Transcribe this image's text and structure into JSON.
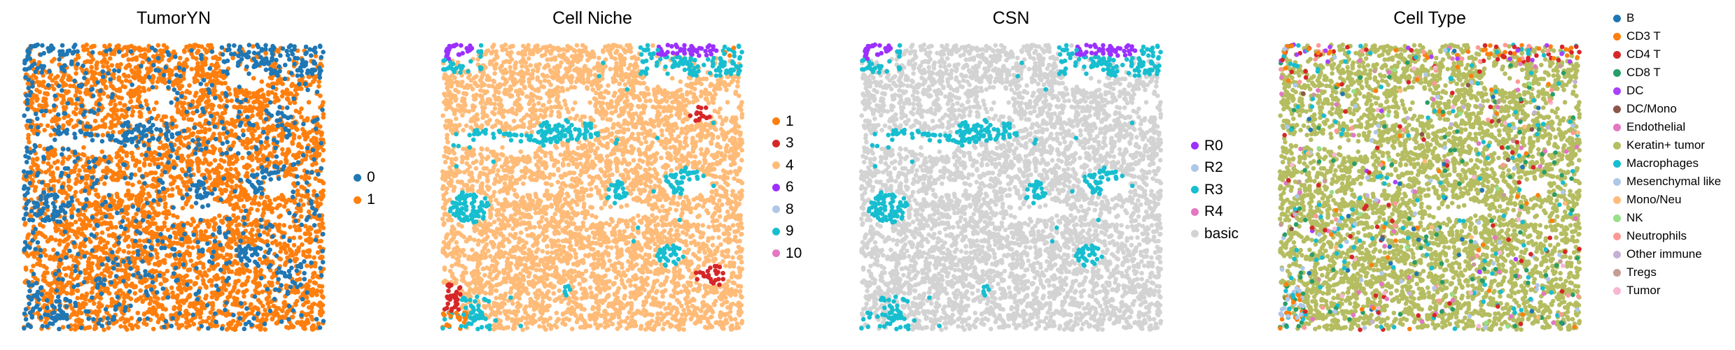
{
  "chart_data": [
    {
      "type": "scatter",
      "title": "TumorYN",
      "categories": [
        "0",
        "1"
      ],
      "colors": [
        "#1f77b4",
        "#ff7f0e"
      ]
    },
    {
      "type": "scatter",
      "title": "Cell Niche",
      "categories": [
        "1",
        "3",
        "4",
        "6",
        "8",
        "9",
        "10"
      ],
      "colors": [
        "#ff7f0e",
        "#d62728",
        "#ffbb78",
        "#9b30ff",
        "#aec7e8",
        "#17becf",
        "#e377c2"
      ]
    },
    {
      "type": "scatter",
      "title": "CSN",
      "categories": [
        "R0",
        "R2",
        "R3",
        "R4",
        "basic"
      ],
      "colors": [
        "#9b30ff",
        "#aec7e8",
        "#17becf",
        "#e377c2",
        "#d3d3d3"
      ]
    },
    {
      "type": "scatter",
      "title": "Cell Type",
      "categories": [
        "B",
        "CD3 T",
        "CD4 T",
        "CD8 T",
        "DC",
        "DC/Mono",
        "Endothelial",
        "Keratin+ tumor",
        "Macrophages",
        "Mesenchymal like",
        "Mono/Neu",
        "NK",
        "Neutrophils",
        "Other immune",
        "Tregs",
        "Tumor"
      ],
      "colors": [
        "#1f77b4",
        "#ff7f0e",
        "#d62728",
        "#279e68",
        "#aa40fc",
        "#8c564b",
        "#e377c2",
        "#b5bd61",
        "#17becf",
        "#aec7e8",
        "#ffbb78",
        "#98df8a",
        "#ff9896",
        "#c5b0d5",
        "#c49c94",
        "#f7b6d2"
      ]
    }
  ]
}
